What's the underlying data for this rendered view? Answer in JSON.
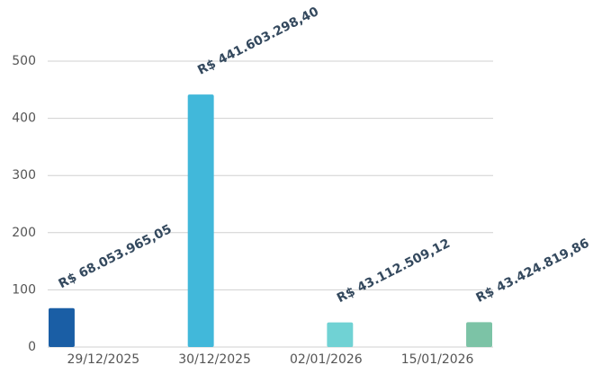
{
  "chart_data": {
    "type": "bar",
    "categories": [
      "29/12/2025",
      "30/12/2025",
      "02/01/2026",
      "15/01/2026"
    ],
    "series": [
      {
        "color": "#1a5ea5",
        "values": [
          68.05396505,
          null,
          null,
          null
        ],
        "value_labels": [
          "R$ 68.053.965,05",
          null,
          null,
          null
        ]
      },
      {
        "color": "#41b8da",
        "values": [
          null,
          441.6032984,
          null,
          null
        ],
        "value_labels": [
          null,
          "R$ 441.603.298,40",
          null,
          null
        ]
      },
      {
        "color": "#70d2d4",
        "values": [
          null,
          null,
          43.11250912,
          null
        ],
        "value_labels": [
          null,
          null,
          "R$ 43.112.509,12",
          null
        ]
      },
      {
        "color": "#7cc3a6",
        "values": [
          null,
          null,
          null,
          43.42481986
        ],
        "value_labels": [
          null,
          null,
          null,
          "R$ 43.424.819,86"
        ]
      }
    ],
    "ylim": [
      0,
      500
    ],
    "yticks": [
      0,
      100,
      200,
      300,
      400,
      500
    ],
    "grid": true
  }
}
